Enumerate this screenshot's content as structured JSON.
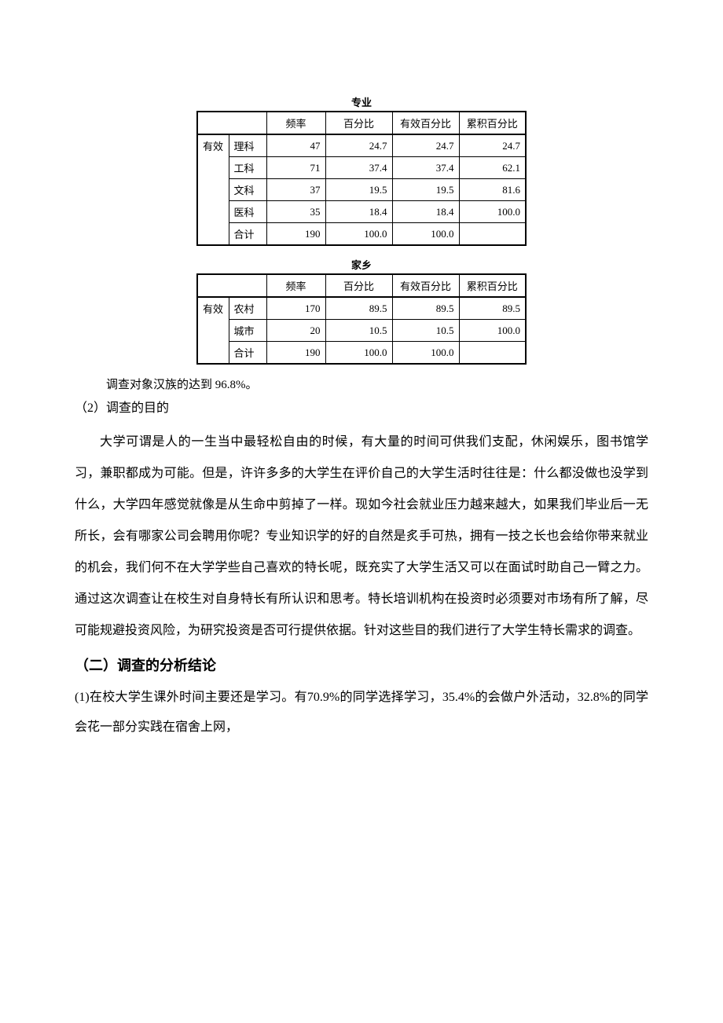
{
  "table1": {
    "title": "专业",
    "headers": {
      "h1": "",
      "h2": "频率",
      "h3": "百分比",
      "h4": "有效百分比",
      "h5": "累积百分比"
    },
    "group_label": "有效",
    "rows": [
      {
        "label": "理科",
        "freq": "47",
        "pct": "24.7",
        "vpct": "24.7",
        "cpct": "24.7"
      },
      {
        "label": "工科",
        "freq": "71",
        "pct": "37.4",
        "vpct": "37.4",
        "cpct": "62.1"
      },
      {
        "label": "文科",
        "freq": "37",
        "pct": "19.5",
        "vpct": "19.5",
        "cpct": "81.6"
      },
      {
        "label": "医科",
        "freq": "35",
        "pct": "18.4",
        "vpct": "18.4",
        "cpct": "100.0"
      }
    ],
    "total": {
      "label": "合计",
      "freq": "190",
      "pct": "100.0",
      "vpct": "100.0",
      "cpct": ""
    }
  },
  "table2": {
    "title": "家乡",
    "headers": {
      "h1": "",
      "h2": "频率",
      "h3": "百分比",
      "h4": "有效百分比",
      "h5": "累积百分比"
    },
    "group_label": "有效",
    "rows": [
      {
        "label": "农村",
        "freq": "170",
        "pct": "89.5",
        "vpct": "89.5",
        "cpct": "89.5"
      },
      {
        "label": "城市",
        "freq": "20",
        "pct": "10.5",
        "vpct": "10.5",
        "cpct": "100.0"
      }
    ],
    "total": {
      "label": "合计",
      "freq": "190",
      "pct": "100.0",
      "vpct": "100.0",
      "cpct": ""
    }
  },
  "note": "调查对象汉族的达到 96.8%。",
  "section2_heading": "（2）调查的目的",
  "section2_para": "大学可谓是人的一生当中最轻松自由的时候，有大量的时间可供我们支配，休闲娱乐，图书馆学习，兼职都成为可能。但是，许许多多的大学生在评价自己的大学生活时往往是：什么都没做也没学到什么，大学四年感觉就像是从生命中剪掉了一样。现如今社会就业压力越来越大，如果我们毕业后一无所长，会有哪家公司会聘用你呢？专业知识学的好的自然是炙手可热，拥有一技之长也会给你带来就业的机会，我们何不在大学学些自己喜欢的特长呢，既充实了大学生活又可以在面试时助自己一臂之力。通过这次调查让在校生对自身特长有所认识和思考。特长培训机构在投资时必须要对市场有所了解，尽可能规避投资风险，为研究投资是否可行提供依据。针对这些目的我们进行了大学生特长需求的调查。",
  "section3_heading": "（二）调查的分析结论",
  "section3_para": "(1)在校大学生课外时间主要还是学习。有70.9%的同学选择学习，35.4%的会做户外活动，32.8%的同学会花一部分实践在宿舍上网，"
}
